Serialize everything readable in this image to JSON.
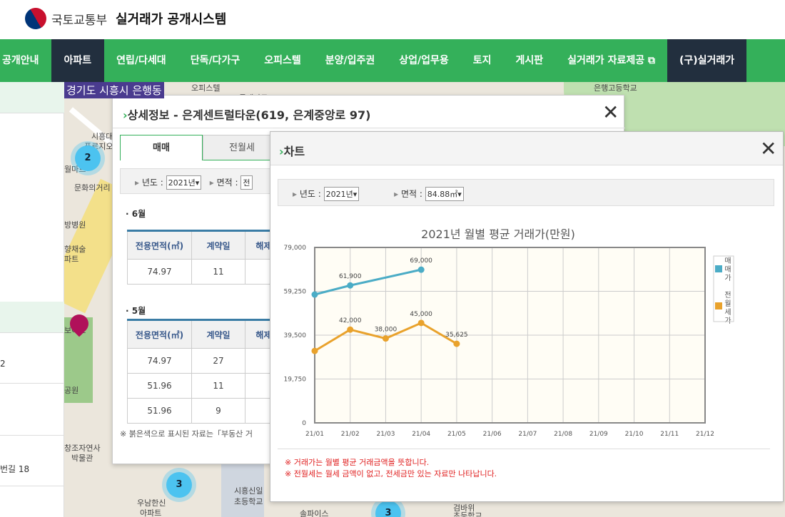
{
  "header": {
    "org": "국토교통부",
    "system": "실거래가 공개시스템"
  },
  "nav": {
    "items": [
      "공개안내",
      "아파트",
      "연립/다세대",
      "단독/다가구",
      "오피스텔",
      "분양/입주권",
      "상업/업무용",
      "토지",
      "게시판",
      "실거래가 자료제공 ⧉",
      "(구)실거래가"
    ],
    "active": "아파트"
  },
  "location": "경기도 시흥시 은행동",
  "sidebar": {
    "fragments": [
      "2",
      "번길 18"
    ]
  },
  "map": {
    "labels": [
      "오피스텔",
      "롯데마트",
      "은행고등학교",
      "시흥대",
      "푸르지오",
      "월마트",
      "문화의거리",
      "방병원",
      "향채술",
      "파트",
      "보아트",
      "공원",
      "창조자연사",
      "박물관",
      "우남한신",
      "아파트",
      "시흥신일",
      "초등학교",
      "솔파이스",
      "검바위",
      "초등학교"
    ],
    "clusters": [
      "2",
      "3",
      "3"
    ]
  },
  "detail": {
    "title": "상세정보 - 은계센트럴타운(619, 은계중앙로 97)",
    "tabs": [
      "매매",
      "전월세"
    ],
    "active_tab": "매매",
    "filters": {
      "year_label": "년도 :",
      "year_value": "2021년",
      "area_label": "면적 :",
      "area_value": "전"
    },
    "columns": [
      "전용면적(㎡)",
      "계약일",
      "해제여부"
    ],
    "groups": [
      {
        "month": "6월",
        "rows": [
          [
            "74.97",
            "11"
          ]
        ]
      },
      {
        "month": "5월",
        "rows": [
          [
            "74.97",
            "27"
          ],
          [
            "51.96",
            "11"
          ],
          [
            "51.96",
            "9"
          ]
        ]
      }
    ],
    "note": "※ 붉은색으로 표시된 자료는「부동산 거"
  },
  "chart_panel": {
    "title": "차트",
    "filters": {
      "year_label": "년도 :",
      "year_value": "2021년",
      "area_label": "면적 :",
      "area_value": "84.88㎡"
    },
    "notes": [
      "※ 거래가는 월별 평균 거래금액을 뜻합니다.",
      "※ 전월세는 월세 금액이 없고, 전세금만 있는 자료만 나타납니다."
    ]
  },
  "chart_data": {
    "type": "line",
    "title": "2021년 월별 평균 거래가(만원)",
    "categories": [
      "21/01",
      "21/02",
      "21/03",
      "21/04",
      "21/05",
      "21/06",
      "21/07",
      "21/08",
      "21/09",
      "21/10",
      "21/11",
      "21/12"
    ],
    "ylim": [
      0,
      79000
    ],
    "yticks": [
      "79,000",
      "59,250",
      "39,500",
      "19,750",
      "0"
    ],
    "ytick_values": [
      79000,
      59250,
      39500,
      19750,
      0
    ],
    "grid": true,
    "legend": "right",
    "series": [
      {
        "name": "매매가",
        "color": "#4bacc6",
        "values": [
          57800,
          61900,
          null,
          69000,
          null,
          null,
          null,
          null,
          null,
          null,
          null,
          null
        ],
        "labels": [
          "",
          "61,900",
          "",
          "69,000"
        ]
      },
      {
        "name": "전월세가",
        "color": "#e9a22c",
        "values": [
          32400,
          42000,
          38000,
          45000,
          35625,
          null,
          null,
          null,
          null,
          null,
          null,
          null
        ],
        "labels": [
          "",
          "42,000",
          "38,000",
          "45,000",
          "35,625"
        ]
      }
    ]
  }
}
